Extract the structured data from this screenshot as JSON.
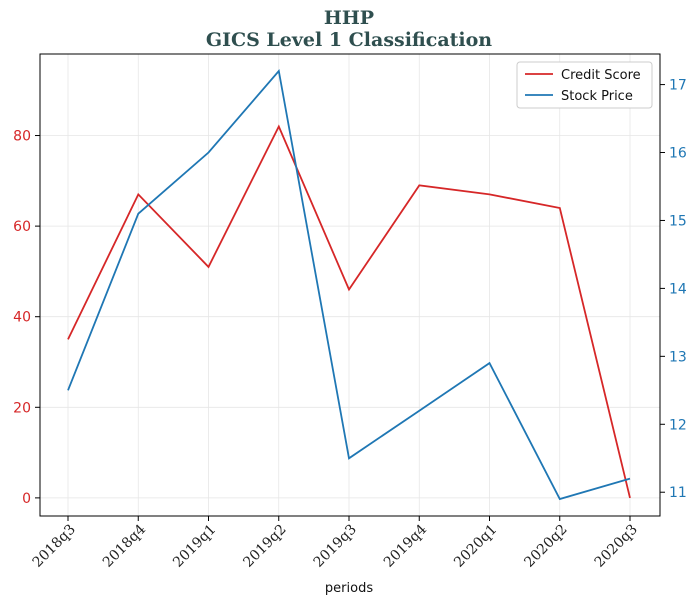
{
  "chart_data": {
    "type": "line",
    "title": "HHP",
    "subtitle": "GICS Level 1 Classification",
    "xlabel": "periods",
    "categories": [
      "2018q3",
      "2018q4",
      "2019q1",
      "2019q2",
      "2019q3",
      "2019q4",
      "2020q1",
      "2020q2",
      "2020q3"
    ],
    "grid": true,
    "legend_position": "top-right",
    "left_axis": {
      "ylim": [
        -4,
        98
      ],
      "ticks": [
        0,
        20,
        40,
        60,
        80
      ],
      "color": "#d62728"
    },
    "right_axis": {
      "ylim": [
        10.65,
        17.45
      ],
      "ticks": [
        11,
        12,
        13,
        14,
        15,
        16,
        17
      ],
      "color": "#1f77b4"
    },
    "series": [
      {
        "name": "Credit Score",
        "axis": "left",
        "color": "#d62728",
        "values": [
          35,
          67,
          51,
          82,
          46,
          69,
          67,
          64,
          0
        ]
      },
      {
        "name": "Stock Price",
        "axis": "right",
        "color": "#1f77b4",
        "values": [
          12.5,
          15.1,
          16.0,
          17.2,
          11.5,
          12.2,
          12.9,
          10.9,
          11.2
        ]
      }
    ]
  }
}
